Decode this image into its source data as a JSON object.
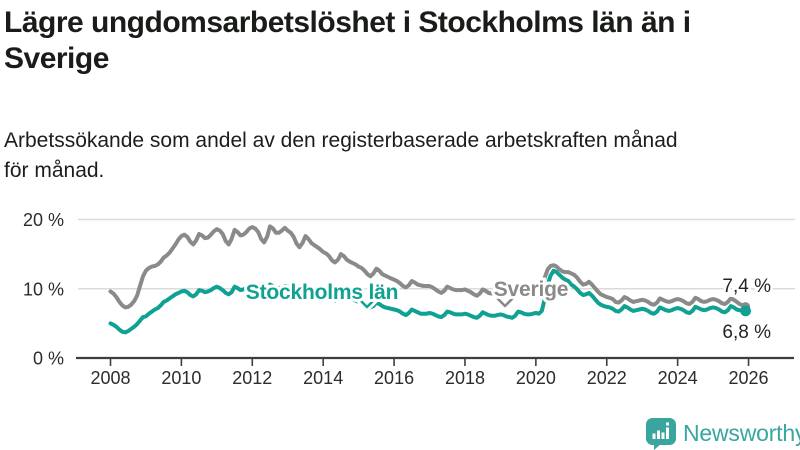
{
  "page": {
    "background": "#ffffff"
  },
  "header": {
    "title_lines": [
      "Lägre ungdomsarbetslöshet i Stockholms län än i",
      "Sverige"
    ],
    "subtitle_lines": [
      "Arbetssökande som andel av den registerbaserade arbetskraften månad",
      "för månad."
    ]
  },
  "footer": {
    "brand": "Newsworthy",
    "logo_icon": "bar-chart-speech-bubble-icon",
    "brand_color": "#38a7a0"
  },
  "chart_data": {
    "type": "line",
    "title": "Lägre ungdomsarbetslöshet i Stockholms län än i Sverige",
    "subtitle": "Arbetssökande som andel av den registerbaserade arbetskraften månad för månad.",
    "unit": "percent",
    "frequency": "monthly",
    "x_start": "2008-01",
    "x_end": "2025-12",
    "x_ticks": [
      2008,
      2010,
      2012,
      2014,
      2016,
      2018,
      2020,
      2022,
      2024,
      2026
    ],
    "y_ticks": [
      {
        "value": 0,
        "label": "0 %"
      },
      {
        "value": 10,
        "label": "10 %"
      },
      {
        "value": 20,
        "label": "20 %"
      }
    ],
    "ylim": [
      0,
      21.8
    ],
    "grid": "horizontal",
    "colors": {
      "grid": "#dbdbdb",
      "axis": "#3e3e3e",
      "tick_text": "#2c2c2c",
      "value_text": "#242424"
    },
    "series": [
      {
        "name": "Sverige",
        "color": "#8a8a8a",
        "end_value": 7.4,
        "end_label": "7,4 %",
        "values": [
          9.6,
          9.3,
          8.8,
          8.1,
          7.6,
          7.3,
          7.4,
          7.7,
          8.2,
          9.0,
          10.4,
          11.8,
          12.6,
          13.0,
          13.2,
          13.3,
          13.5,
          13.9,
          14.5,
          14.8,
          15.2,
          15.8,
          16.4,
          17.1,
          17.6,
          17.8,
          17.5,
          16.8,
          16.4,
          17.0,
          17.9,
          17.7,
          17.3,
          17.4,
          17.8,
          18.3,
          18.6,
          18.4,
          17.9,
          16.9,
          16.4,
          17.2,
          18.5,
          18.2,
          17.7,
          17.8,
          18.2,
          18.7,
          18.9,
          18.7,
          18.2,
          17.2,
          16.7,
          17.5,
          19.0,
          18.7,
          18.1,
          18.1,
          18.4,
          18.8,
          18.4,
          18.1,
          17.5,
          16.5,
          16.0,
          16.6,
          17.6,
          17.2,
          16.6,
          16.3,
          16.0,
          15.7,
          15.3,
          15.1,
          14.7,
          14.1,
          13.8,
          14.2,
          15.0,
          14.7,
          14.2,
          13.9,
          13.7,
          13.5,
          13.2,
          13.0,
          12.6,
          12.1,
          11.8,
          12.2,
          12.9,
          12.6,
          12.1,
          11.9,
          11.7,
          11.5,
          11.3,
          11.1,
          10.8,
          10.4,
          10.2,
          10.5,
          11.1,
          10.9,
          10.6,
          10.5,
          10.4,
          10.4,
          10.4,
          10.2,
          9.9,
          9.6,
          9.4,
          9.7,
          10.3,
          10.1,
          9.9,
          9.8,
          9.8,
          9.8,
          9.9,
          9.7,
          9.5,
          9.2,
          9.0,
          9.3,
          9.9,
          9.7,
          9.4,
          9.3,
          9.4,
          9.5,
          9.7,
          9.5,
          9.3,
          9.1,
          9.0,
          9.3,
          9.9,
          9.8,
          9.6,
          9.6,
          9.7,
          9.9,
          10.0,
          9.9,
          10.3,
          11.6,
          12.8,
          13.3,
          13.4,
          13.2,
          12.8,
          12.5,
          12.4,
          12.4,
          12.2,
          12.0,
          11.6,
          11.0,
          10.6,
          10.7,
          11.0,
          10.6,
          10.1,
          9.6,
          9.2,
          9.0,
          8.8,
          8.7,
          8.5,
          8.1,
          8.0,
          8.3,
          8.8,
          8.6,
          8.3,
          8.1,
          8.2,
          8.3,
          8.4,
          8.3,
          8.1,
          7.8,
          7.7,
          8.0,
          8.6,
          8.4,
          8.2,
          8.1,
          8.2,
          8.4,
          8.5,
          8.4,
          8.2,
          7.9,
          7.8,
          8.1,
          8.7,
          8.5,
          8.2,
          8.1,
          8.2,
          8.4,
          8.5,
          8.4,
          8.2,
          7.9,
          7.8,
          8.1,
          8.6,
          8.4,
          8.1,
          7.8,
          7.6,
          7.4
        ]
      },
      {
        "name": "Stockholms län",
        "color": "#0fa293",
        "end_value": 6.8,
        "end_label": "6,8 %",
        "values": [
          5.0,
          4.8,
          4.5,
          4.1,
          3.8,
          3.7,
          3.9,
          4.2,
          4.5,
          4.9,
          5.4,
          5.9,
          6.0,
          6.4,
          6.7,
          7.0,
          7.2,
          7.6,
          8.1,
          8.3,
          8.6,
          8.9,
          9.2,
          9.4,
          9.6,
          9.7,
          9.5,
          9.1,
          8.9,
          9.2,
          9.8,
          9.7,
          9.5,
          9.6,
          9.8,
          10.1,
          10.3,
          10.1,
          9.8,
          9.4,
          9.2,
          9.5,
          10.3,
          10.1,
          9.8,
          9.9,
          10.1,
          10.4,
          10.6,
          10.4,
          10.1,
          9.7,
          9.5,
          9.8,
          10.6,
          10.4,
          10.1,
          10.1,
          10.2,
          10.4,
          10.3,
          10.1,
          9.8,
          9.4,
          9.2,
          9.5,
          10.1,
          9.9,
          9.6,
          9.5,
          9.4,
          9.3,
          9.2,
          9.0,
          8.8,
          8.5,
          8.3,
          8.6,
          9.1,
          8.9,
          8.6,
          8.5,
          8.4,
          8.3,
          8.1,
          7.9,
          7.7,
          7.4,
          7.3,
          7.5,
          8.0,
          7.8,
          7.5,
          7.3,
          7.2,
          7.1,
          7.0,
          6.9,
          6.7,
          6.4,
          6.2,
          6.5,
          7.0,
          6.8,
          6.6,
          6.4,
          6.4,
          6.4,
          6.5,
          6.4,
          6.2,
          6.0,
          5.9,
          6.2,
          6.7,
          6.6,
          6.4,
          6.3,
          6.3,
          6.3,
          6.4,
          6.3,
          6.1,
          5.9,
          5.8,
          6.1,
          6.6,
          6.4,
          6.2,
          6.1,
          6.1,
          6.2,
          6.3,
          6.2,
          6.0,
          5.9,
          5.8,
          6.1,
          6.7,
          6.6,
          6.4,
          6.3,
          6.3,
          6.4,
          6.5,
          6.4,
          6.8,
          8.5,
          10.6,
          11.9,
          12.6,
          12.4,
          12.0,
          11.6,
          11.3,
          11.1,
          10.6,
          10.3,
          9.9,
          9.4,
          9.1,
          9.2,
          9.4,
          9.0,
          8.5,
          8.0,
          7.7,
          7.5,
          7.4,
          7.3,
          7.1,
          6.8,
          6.7,
          7.0,
          7.5,
          7.3,
          7.0,
          6.8,
          6.9,
          7.0,
          7.1,
          7.0,
          6.8,
          6.5,
          6.4,
          6.7,
          7.3,
          7.1,
          6.9,
          6.8,
          6.9,
          7.1,
          7.2,
          7.1,
          6.9,
          6.6,
          6.5,
          6.8,
          7.4,
          7.2,
          7.0,
          6.9,
          7.0,
          7.2,
          7.3,
          7.2,
          7.0,
          6.7,
          6.6,
          6.9,
          7.5,
          7.3,
          7.0,
          6.9,
          6.8,
          6.8
        ]
      }
    ]
  }
}
